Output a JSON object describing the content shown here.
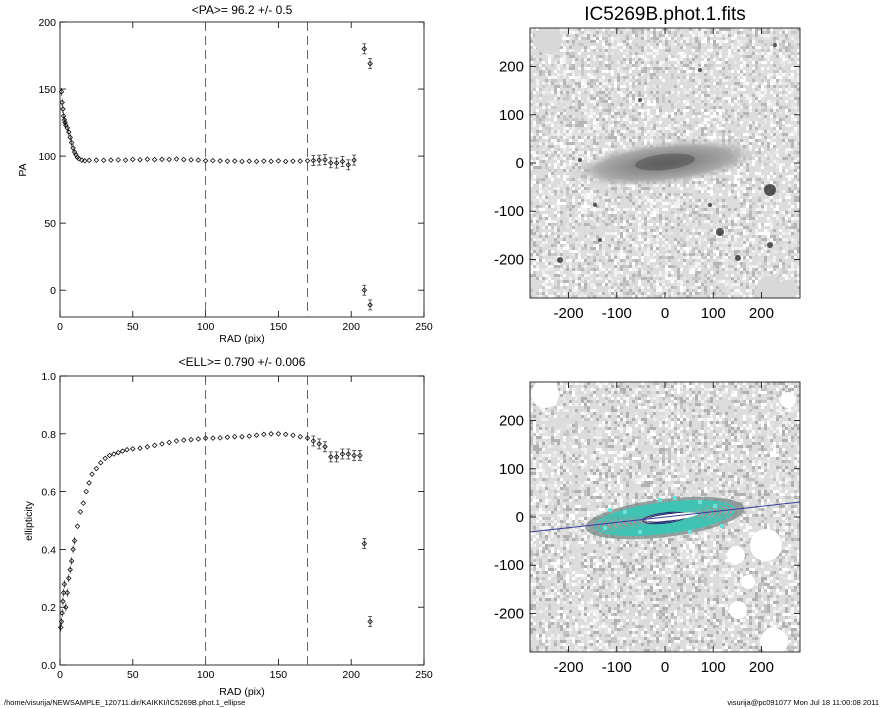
{
  "chart_data": [
    {
      "type": "scatter",
      "title": "<PA>=  96.2 +/-   0.5",
      "xlabel": "RAD (pix)",
      "ylabel": "PA",
      "xlim": [
        0,
        250
      ],
      "ylim": [
        -20,
        200
      ],
      "xticks": [
        "0",
        "50",
        "100",
        "150",
        "200",
        "250"
      ],
      "yticks": [
        "0",
        "50",
        "100",
        "150",
        "200"
      ],
      "vlines": [
        100,
        170
      ],
      "points": [
        [
          1,
          148
        ],
        [
          1.5,
          140
        ],
        [
          2,
          135
        ],
        [
          2.5,
          130
        ],
        [
          3,
          127
        ],
        [
          3.5,
          125
        ],
        [
          4,
          123
        ],
        [
          5,
          121
        ],
        [
          6,
          118
        ],
        [
          7,
          114
        ],
        [
          8,
          110
        ],
        [
          9,
          106
        ],
        [
          10,
          103
        ],
        [
          11,
          101
        ],
        [
          12,
          99
        ],
        [
          13,
          98
        ],
        [
          15,
          97
        ],
        [
          17,
          96.5
        ],
        [
          20,
          96.8
        ],
        [
          25,
          97
        ],
        [
          30,
          96.8
        ],
        [
          35,
          97
        ],
        [
          40,
          97.2
        ],
        [
          45,
          97
        ],
        [
          50,
          97.5
        ],
        [
          55,
          97.3
        ],
        [
          60,
          97.6
        ],
        [
          65,
          97.4
        ],
        [
          70,
          97.6
        ],
        [
          75,
          97.5
        ],
        [
          80,
          97.8
        ],
        [
          85,
          97.4
        ],
        [
          90,
          97.2
        ],
        [
          95,
          97
        ],
        [
          100,
          96.5
        ],
        [
          105,
          96.6
        ],
        [
          110,
          96.4
        ],
        [
          115,
          96.2
        ],
        [
          120,
          96.3
        ],
        [
          125,
          96
        ],
        [
          130,
          96.2
        ],
        [
          135,
          96
        ],
        [
          140,
          96.3
        ],
        [
          145,
          96.1
        ],
        [
          150,
          96.4
        ],
        [
          155,
          96
        ],
        [
          160,
          96.2
        ],
        [
          165,
          96.3
        ],
        [
          170,
          96.5
        ],
        [
          174,
          96.7
        ],
        [
          178,
          97
        ],
        [
          182,
          97.3
        ],
        [
          186,
          95
        ],
        [
          190,
          94.8
        ],
        [
          194,
          96
        ],
        [
          198,
          93.5
        ],
        [
          202,
          97
        ],
        [
          209,
          180
        ],
        [
          213,
          169
        ],
        [
          209,
          0
        ],
        [
          213,
          -11
        ]
      ]
    },
    {
      "type": "scatter",
      "title": "<ELL>= 0.790 +/-  0.006",
      "xlabel": "RAD (pix)",
      "ylabel": "ellipticity",
      "xlim": [
        0,
        250
      ],
      "ylim": [
        0.0,
        1.0
      ],
      "xticks": [
        "0",
        "50",
        "100",
        "150",
        "200",
        "250"
      ],
      "yticks": [
        "0.0",
        "0.2",
        "0.4",
        "0.6",
        "0.8",
        "1.0"
      ],
      "vlines": [
        100,
        170
      ],
      "points": [
        [
          0.5,
          0.13
        ],
        [
          1,
          0.15
        ],
        [
          1.5,
          0.18
        ],
        [
          2,
          0.22
        ],
        [
          2.5,
          0.25
        ],
        [
          3,
          0.28
        ],
        [
          4,
          0.2
        ],
        [
          5,
          0.25
        ],
        [
          6,
          0.3
        ],
        [
          7,
          0.33
        ],
        [
          8,
          0.36
        ],
        [
          9,
          0.4
        ],
        [
          10,
          0.43
        ],
        [
          12,
          0.48
        ],
        [
          14,
          0.53
        ],
        [
          16,
          0.56
        ],
        [
          18,
          0.6
        ],
        [
          20,
          0.63
        ],
        [
          22,
          0.66
        ],
        [
          25,
          0.68
        ],
        [
          28,
          0.7
        ],
        [
          31,
          0.715
        ],
        [
          34,
          0.725
        ],
        [
          37,
          0.73
        ],
        [
          40,
          0.735
        ],
        [
          43,
          0.74
        ],
        [
          46,
          0.745
        ],
        [
          50,
          0.748
        ],
        [
          55,
          0.75
        ],
        [
          60,
          0.755
        ],
        [
          65,
          0.76
        ],
        [
          70,
          0.765
        ],
        [
          75,
          0.77
        ],
        [
          80,
          0.775
        ],
        [
          85,
          0.778
        ],
        [
          90,
          0.78
        ],
        [
          95,
          0.782
        ],
        [
          100,
          0.785
        ],
        [
          105,
          0.785
        ],
        [
          110,
          0.786
        ],
        [
          115,
          0.788
        ],
        [
          120,
          0.79
        ],
        [
          125,
          0.79
        ],
        [
          130,
          0.792
        ],
        [
          135,
          0.795
        ],
        [
          140,
          0.798
        ],
        [
          145,
          0.8
        ],
        [
          150,
          0.8
        ],
        [
          155,
          0.798
        ],
        [
          160,
          0.795
        ],
        [
          165,
          0.79
        ],
        [
          170,
          0.785
        ],
        [
          174,
          0.775
        ],
        [
          178,
          0.765
        ],
        [
          182,
          0.755
        ],
        [
          186,
          0.72
        ],
        [
          190,
          0.72
        ],
        [
          194,
          0.73
        ],
        [
          198,
          0.73
        ],
        [
          202,
          0.725
        ],
        [
          206,
          0.725
        ],
        [
          209,
          0.42
        ],
        [
          213,
          0.15
        ]
      ]
    },
    {
      "type": "heatmap",
      "title": "IC5269B.phot.1.fits",
      "xlim": [
        -280,
        280
      ],
      "ylim": [
        -280,
        280
      ],
      "xticks": [
        "-200",
        "-100",
        "0",
        "100",
        "200"
      ],
      "yticks": [
        "200",
        "100",
        "0",
        "-100",
        "-200"
      ]
    },
    {
      "type": "heatmap",
      "xlim": [
        -280,
        280
      ],
      "ylim": [
        -280,
        280
      ],
      "xticks": [
        "-200",
        "-100",
        "0",
        "100",
        "200"
      ],
      "yticks": [
        "200",
        "100",
        "0",
        "-100",
        "-200"
      ],
      "colors": {
        "contour": "#3fc4b4",
        "line": "#3a3aa0"
      }
    }
  ],
  "footer": {
    "left": "/home/visurija/NEWSAMPLE_120711.dir/KAIKKI/IC5269B.phot.1_ellipse",
    "right": "visurija@pc091077  Mon Jul 18 11:00:08 2011"
  }
}
